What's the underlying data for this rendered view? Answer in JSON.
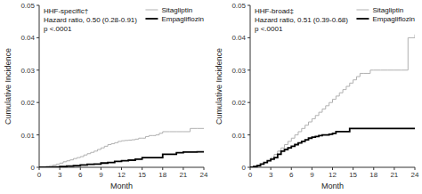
{
  "chart_data": [
    {
      "type": "step",
      "title": "HHF-specific†",
      "subtitle": "Hazard ratio, 0.50 (0.28-0.91)",
      "annotations": [
        "p <.0001"
      ],
      "x_label": "Month",
      "y_label": "Cumulative Incidence",
      "xlim": [
        0,
        24
      ],
      "xticks": [
        0,
        3,
        6,
        9,
        12,
        15,
        18,
        21,
        24
      ],
      "ylim": [
        0,
        0.05
      ],
      "yticks": [
        0,
        0.01,
        0.02,
        0.03,
        0.04,
        0.05
      ],
      "legend": "upper right",
      "series": [
        {
          "name": "Sitagliptin",
          "color": "#b0b0b0",
          "x": [
            0,
            0.5,
            1,
            1.5,
            2,
            2.5,
            3,
            3.5,
            4,
            4.5,
            5,
            5.5,
            6,
            6.5,
            7,
            7.5,
            8,
            8.5,
            9,
            9.5,
            10,
            10.5,
            11,
            11.5,
            12,
            12.5,
            13,
            13.5,
            14,
            14.5,
            15,
            15.5,
            16,
            16.5,
            17,
            17.5,
            18,
            19,
            20,
            21,
            22,
            23,
            24
          ],
          "values": [
            0,
            0.0001,
            0.0003,
            0.0005,
            0.0007,
            0.001,
            0.0013,
            0.0017,
            0.002,
            0.0023,
            0.0027,
            0.003,
            0.0033,
            0.0038,
            0.0042,
            0.0046,
            0.005,
            0.0055,
            0.006,
            0.0065,
            0.007,
            0.0073,
            0.0076,
            0.008,
            0.0082,
            0.0083,
            0.0084,
            0.0085,
            0.0087,
            0.009,
            0.009,
            0.0095,
            0.0098,
            0.0098,
            0.01,
            0.0105,
            0.011,
            0.011,
            0.011,
            0.011,
            0.012,
            0.012,
            0.012
          ]
        },
        {
          "name": "Empagliflozin",
          "color": "#000000",
          "x": [
            0,
            1,
            2,
            3,
            4,
            5,
            6,
            7,
            8,
            9,
            10,
            11,
            12,
            13,
            14,
            15,
            16,
            17,
            18,
            19,
            20,
            21,
            22,
            23,
            24
          ],
          "values": [
            0,
            5e-05,
            0.0001,
            0.0002,
            0.0004,
            0.0005,
            0.0007,
            0.0009,
            0.001,
            0.0013,
            0.0015,
            0.0018,
            0.002,
            0.0022,
            0.0025,
            0.003,
            0.003,
            0.003,
            0.004,
            0.004,
            0.0045,
            0.0047,
            0.0047,
            0.0048,
            0.0048
          ]
        }
      ]
    },
    {
      "type": "step",
      "title": "HHF-broad‡",
      "subtitle": "Hazard ratio, 0.51 (0.39-0.68)",
      "annotations": [
        "p <.0001"
      ],
      "x_label": "Month",
      "y_label": "Cumulative Incidence",
      "xlim": [
        0,
        24
      ],
      "xticks": [
        0,
        3,
        6,
        9,
        12,
        15,
        18,
        21,
        24
      ],
      "ylim": [
        0,
        0.05
      ],
      "yticks": [
        0,
        0.01,
        0.02,
        0.03,
        0.04,
        0.05
      ],
      "legend": "upper right",
      "series": [
        {
          "name": "Sitagliptin",
          "color": "#b0b0b0",
          "x": [
            0,
            0.5,
            1,
            1.5,
            2,
            2.5,
            3,
            3.5,
            4,
            4.5,
            5,
            5.5,
            6,
            6.5,
            7,
            7.5,
            8,
            8.5,
            9,
            9.5,
            10,
            10.5,
            11,
            11.5,
            12,
            12.5,
            13,
            13.5,
            14,
            14.5,
            15,
            15.5,
            16,
            16.5,
            17,
            17.5,
            18,
            19,
            20,
            21,
            22,
            23,
            24
          ],
          "values": [
            0,
            0.0003,
            0.0007,
            0.001,
            0.0015,
            0.002,
            0.003,
            0.004,
            0.005,
            0.006,
            0.007,
            0.008,
            0.009,
            0.01,
            0.011,
            0.012,
            0.013,
            0.014,
            0.015,
            0.016,
            0.017,
            0.018,
            0.019,
            0.02,
            0.021,
            0.022,
            0.023,
            0.024,
            0.025,
            0.026,
            0.027,
            0.028,
            0.029,
            0.029,
            0.029,
            0.03,
            0.03,
            0.03,
            0.03,
            0.03,
            0.03,
            0.04,
            0.041
          ]
        },
        {
          "name": "Empagliflozin",
          "color": "#000000",
          "x": [
            0,
            0.5,
            1,
            1.5,
            2,
            2.5,
            3,
            3.5,
            4,
            4.5,
            5,
            5.5,
            6,
            6.5,
            7,
            7.5,
            8,
            8.5,
            9,
            9.5,
            10,
            10.5,
            11,
            11.5,
            12,
            12.5,
            13,
            13.5,
            14,
            14.5,
            15,
            16,
            17,
            18,
            19,
            20,
            21,
            22,
            23,
            24
          ],
          "values": [
            0,
            0.0002,
            0.0005,
            0.001,
            0.0015,
            0.002,
            0.0025,
            0.003,
            0.004,
            0.005,
            0.0055,
            0.006,
            0.0065,
            0.007,
            0.0075,
            0.008,
            0.0085,
            0.009,
            0.0093,
            0.0095,
            0.0098,
            0.01,
            0.01,
            0.0102,
            0.0105,
            0.011,
            0.011,
            0.011,
            0.011,
            0.012,
            0.012,
            0.012,
            0.012,
            0.012,
            0.012,
            0.012,
            0.012,
            0.012,
            0.012,
            0.012
          ]
        }
      ]
    }
  ]
}
